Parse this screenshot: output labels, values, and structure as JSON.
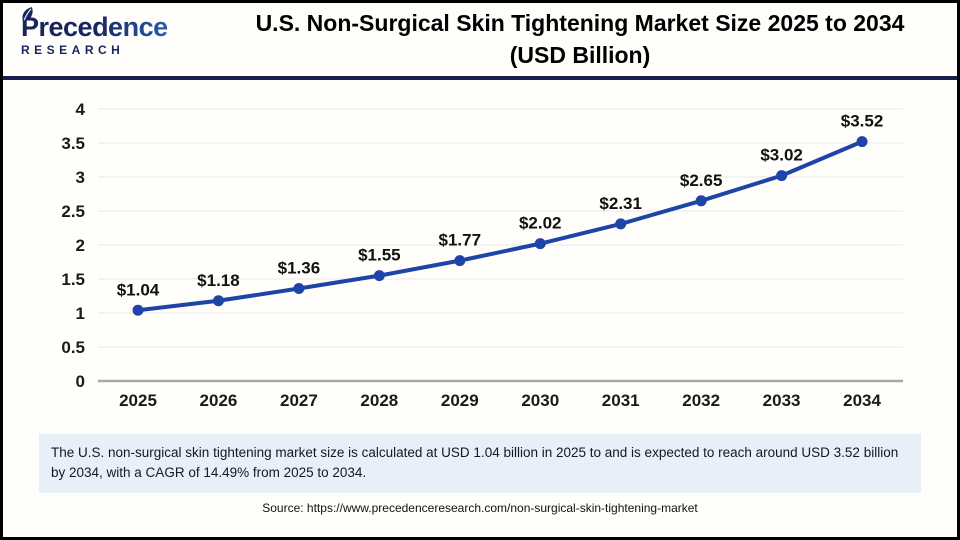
{
  "header": {
    "logo": {
      "brand": "Precedence",
      "sub_brand": "RESEARCH"
    },
    "title_line1": "U.S. Non-Surgical Skin Tightening Market Size 2025 to 2034",
    "title_line2": "(USD Billion)"
  },
  "chart_data": {
    "type": "line",
    "title": "U.S. Non-Surgical Skin Tightening Market Size 2025 to 2034 (USD Billion)",
    "categories": [
      "2025",
      "2026",
      "2027",
      "2028",
      "2029",
      "2030",
      "2031",
      "2032",
      "2033",
      "2034"
    ],
    "series": [
      {
        "name": "U.S. non-surgical skin tightening market size (USD Billion)",
        "values": [
          1.04,
          1.18,
          1.36,
          1.55,
          1.77,
          2.02,
          2.31,
          2.65,
          3.02,
          3.52
        ]
      }
    ],
    "point_labels": [
      "$1.04",
      "$1.18",
      "$1.36",
      "$1.55",
      "$1.77",
      "$2.02",
      "$2.31",
      "$2.65",
      "$3.02",
      "$3.52"
    ],
    "xlabel": "",
    "ylabel": "",
    "ylim": [
      0,
      4
    ],
    "ytick_step": 0.5,
    "grid": true,
    "legend": "none",
    "colors": {
      "line": "#1E44A8",
      "marker": "#1E44A8",
      "gridline": "#E8E8E8",
      "axis_line": "#A8A8A8",
      "label_text": "#1A1A1A"
    }
  },
  "note": {
    "text": "The U.S. non-surgical skin tightening market size is calculated at USD 1.04 billion in 2025 to and is expected to reach around USD 3.52 billion by 2034, with a CAGR of 14.49% from 2025 to 2034."
  },
  "source": {
    "text": "Source: https://www.precedenceresearch.com/non-surgical-skin-tightening-market"
  },
  "colors": {
    "header_rule": "#161C4C",
    "note_bg": "#E9EFF8",
    "border": "#000000",
    "brand_dark": "#18245E",
    "brand_light": "#2E7CDF"
  }
}
